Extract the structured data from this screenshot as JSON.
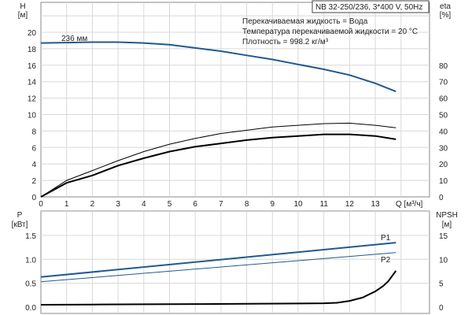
{
  "chart_data": [
    {
      "type": "line",
      "title": "NB 32-250/236, 3*400 V, 50Hz",
      "annotations": [
        "Перекачиваемая жидкость = Вода",
        "Температура перекачиваемой жидкости = 20 °C",
        "Плотность = 998.2 кг/м³"
      ],
      "curve_label": "236 мм",
      "xlabel": "Q [м³/ч]",
      "ylabel_left": "H\n[м]",
      "ylabel_left_lines": [
        "H",
        "[м]"
      ],
      "ylabel_right_lines": [
        "eta",
        "[%]"
      ],
      "xlim": [
        0,
        15
      ],
      "xticks": [
        0,
        1,
        2,
        3,
        4,
        5,
        6,
        7,
        8,
        9,
        10,
        11,
        12,
        13
      ],
      "ylim_left": [
        0,
        22
      ],
      "yticks_left": [
        0,
        2,
        4,
        6,
        8,
        10,
        12,
        14,
        16,
        18,
        20
      ],
      "ylim_right": [
        0,
        110
      ],
      "yticks_right": [
        0,
        10,
        20,
        30,
        40,
        50,
        60,
        70,
        80
      ],
      "grid": true,
      "series": [
        {
          "axis": "left",
          "color": "#1f5a8f",
          "x": [
            0,
            1,
            2,
            3,
            4,
            5,
            6,
            7,
            8,
            9,
            10,
            11,
            12,
            13,
            13.8
          ],
          "y": [
            18.7,
            18.75,
            18.8,
            18.8,
            18.7,
            18.5,
            18.1,
            17.7,
            17.2,
            16.7,
            16.1,
            15.5,
            14.8,
            13.8,
            12.8
          ]
        },
        {
          "axis": "right",
          "color": "#000000",
          "x": [
            0,
            1,
            2,
            3,
            4,
            5,
            6,
            7,
            8,
            9,
            10,
            11,
            12,
            13,
            13.8
          ],
          "y": [
            0,
            10,
            16,
            22,
            27.5,
            32,
            35.5,
            38.5,
            40.5,
            42.5,
            43.5,
            44.5,
            44.8,
            43.5,
            42
          ]
        },
        {
          "axis": "right",
          "color": "#000000",
          "x": [
            0,
            1,
            2,
            3,
            4,
            5,
            6,
            7,
            8,
            9,
            10,
            11,
            12,
            13,
            13.8
          ],
          "y": [
            0,
            8.5,
            13,
            19,
            23.5,
            27.5,
            30.5,
            32.5,
            34.5,
            36,
            37,
            38,
            38,
            37,
            35
          ]
        }
      ]
    },
    {
      "type": "line",
      "xlim": [
        0,
        15
      ],
      "ylabel_left_lines": [
        "P",
        "[кВт]"
      ],
      "ylabel_right_lines": [
        "NPSH",
        "[м]"
      ],
      "ylim_left": [
        0,
        2.1
      ],
      "yticks_left": [
        "0.0",
        "0.5",
        "1.0",
        "1.5"
      ],
      "ylim_right": [
        0,
        21
      ],
      "yticks_right": [
        0,
        5,
        10,
        15
      ],
      "grid": true,
      "series": [
        {
          "name": "P1",
          "axis": "left",
          "color": "#1f5a8f",
          "x": [
            0,
            13.8
          ],
          "y": [
            0.63,
            1.35
          ]
        },
        {
          "name": "P2",
          "axis": "left",
          "color": "#1f5a8f",
          "x": [
            0,
            13.8
          ],
          "y": [
            0.53,
            1.14
          ]
        },
        {
          "axis": "right",
          "color": "#000000",
          "x": [
            0,
            2,
            4,
            6,
            8,
            10,
            11,
            11.5,
            12,
            12.5,
            13,
            13.3,
            13.5,
            13.8
          ],
          "y": [
            0.5,
            0.55,
            0.6,
            0.65,
            0.7,
            0.75,
            0.8,
            0.9,
            1.3,
            2.0,
            3.3,
            4.4,
            5.4,
            7.6
          ]
        }
      ]
    }
  ]
}
